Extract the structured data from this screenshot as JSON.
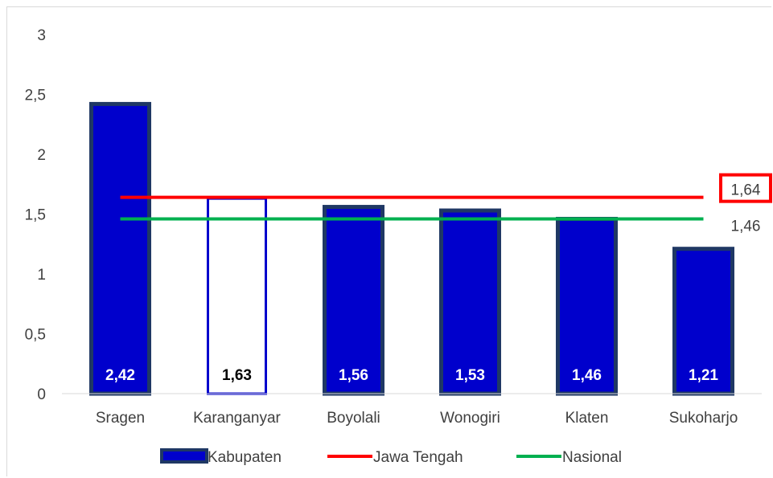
{
  "chart_data": {
    "type": "bar",
    "categories": [
      "Sragen",
      "Karanganyar",
      "Boyolali",
      "Wonogiri",
      "Klaten",
      "Sukoharjo"
    ],
    "series": [
      {
        "name": "Kabupaten",
        "values": [
          2.42,
          1.63,
          1.56,
          1.53,
          1.46,
          1.21
        ]
      }
    ],
    "value_labels": [
      "2,42",
      "1,63",
      "1,56",
      "1,53",
      "1,46",
      "1,21"
    ],
    "highlight_index": 1,
    "reference_lines": [
      {
        "name": "Jawa Tengah",
        "value": 1.64,
        "label": "1,64",
        "color": "#ff0000",
        "boxed": true
      },
      {
        "name": "Nasional",
        "value": 1.46,
        "label": "1,46",
        "color": "#00b050",
        "boxed": false
      }
    ],
    "ylim": [
      0,
      3
    ],
    "y_ticks": [
      0,
      0.5,
      1,
      1.5,
      2,
      2.5,
      3
    ],
    "y_tick_labels": [
      "0",
      "0,5",
      "1",
      "1,5",
      "2",
      "2,5",
      "3"
    ],
    "xlabel": "",
    "ylabel": "",
    "grid": false,
    "legend_position": "bottom",
    "colors": {
      "bar_fill": "#0000cc",
      "bar_border": "#1f3864",
      "highlight_border": "#0000cc",
      "highlight_fill": "#ffffff",
      "bar_label_on_fill": "#ffffff",
      "bar_label_on_highlight": "#000000",
      "axis": "#d9d9d9"
    }
  }
}
